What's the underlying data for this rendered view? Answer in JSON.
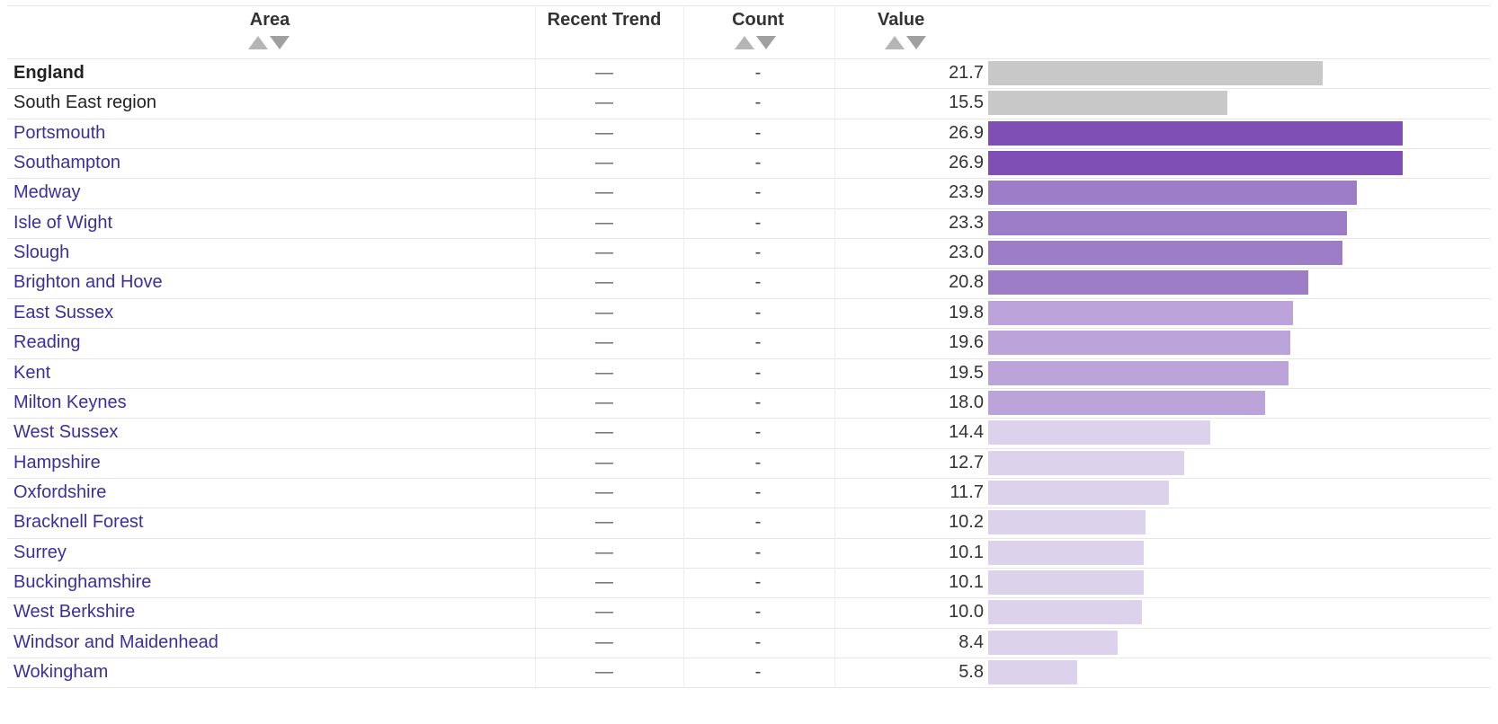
{
  "table": {
    "columns": [
      "Area",
      "Recent Trend",
      "Count",
      "Value"
    ],
    "rows": [
      {
        "area": "England",
        "trend": "—",
        "count": "-",
        "value": 21.7,
        "value_label": "21.7",
        "bar_color": "#c8c8c8",
        "name_style": "bold"
      },
      {
        "area": "South East region",
        "trend": "—",
        "count": "-",
        "value": 15.5,
        "value_label": "15.5",
        "bar_color": "#c8c8c8",
        "name_style": "plain"
      },
      {
        "area": "Portsmouth",
        "trend": "—",
        "count": "-",
        "value": 26.9,
        "value_label": "26.9",
        "bar_color": "#7f4fb5",
        "name_style": "link"
      },
      {
        "area": "Southampton",
        "trend": "—",
        "count": "-",
        "value": 26.9,
        "value_label": "26.9",
        "bar_color": "#7f4fb5",
        "name_style": "link"
      },
      {
        "area": "Medway",
        "trend": "—",
        "count": "-",
        "value": 23.9,
        "value_label": "23.9",
        "bar_color": "#9d7cc8",
        "name_style": "link"
      },
      {
        "area": "Isle of Wight",
        "trend": "—",
        "count": "-",
        "value": 23.3,
        "value_label": "23.3",
        "bar_color": "#9d7cc8",
        "name_style": "link"
      },
      {
        "area": "Slough",
        "trend": "—",
        "count": "-",
        "value": 23.0,
        "value_label": "23.0",
        "bar_color": "#9d7cc8",
        "name_style": "link"
      },
      {
        "area": "Brighton and Hove",
        "trend": "—",
        "count": "-",
        "value": 20.8,
        "value_label": "20.8",
        "bar_color": "#9d7cc8",
        "name_style": "link"
      },
      {
        "area": "East Sussex",
        "trend": "—",
        "count": "-",
        "value": 19.8,
        "value_label": "19.8",
        "bar_color": "#bca4da",
        "name_style": "link"
      },
      {
        "area": "Reading",
        "trend": "—",
        "count": "-",
        "value": 19.6,
        "value_label": "19.6",
        "bar_color": "#bca4da",
        "name_style": "link"
      },
      {
        "area": "Kent",
        "trend": "—",
        "count": "-",
        "value": 19.5,
        "value_label": "19.5",
        "bar_color": "#bca4da",
        "name_style": "link"
      },
      {
        "area": "Milton Keynes",
        "trend": "—",
        "count": "-",
        "value": 18.0,
        "value_label": "18.0",
        "bar_color": "#bca4da",
        "name_style": "link"
      },
      {
        "area": "West Sussex",
        "trend": "—",
        "count": "-",
        "value": 14.4,
        "value_label": "14.4",
        "bar_color": "#ddd2ec",
        "name_style": "link"
      },
      {
        "area": "Hampshire",
        "trend": "—",
        "count": "-",
        "value": 12.7,
        "value_label": "12.7",
        "bar_color": "#ddd2ec",
        "name_style": "link"
      },
      {
        "area": "Oxfordshire",
        "trend": "—",
        "count": "-",
        "value": 11.7,
        "value_label": "11.7",
        "bar_color": "#ddd2ec",
        "name_style": "link"
      },
      {
        "area": "Bracknell Forest",
        "trend": "—",
        "count": "-",
        "value": 10.2,
        "value_label": "10.2",
        "bar_color": "#ddd2ec",
        "name_style": "link"
      },
      {
        "area": "Surrey",
        "trend": "—",
        "count": "-",
        "value": 10.1,
        "value_label": "10.1",
        "bar_color": "#ddd2ec",
        "name_style": "link"
      },
      {
        "area": "Buckinghamshire",
        "trend": "—",
        "count": "-",
        "value": 10.1,
        "value_label": "10.1",
        "bar_color": "#ddd2ec",
        "name_style": "link"
      },
      {
        "area": "West Berkshire",
        "trend": "—",
        "count": "-",
        "value": 10.0,
        "value_label": "10.0",
        "bar_color": "#ddd2ec",
        "name_style": "link"
      },
      {
        "area": "Windsor and Maidenhead",
        "trend": "—",
        "count": "-",
        "value": 8.4,
        "value_label": "8.4",
        "bar_color": "#ddd2ec",
        "name_style": "link"
      },
      {
        "area": "Wokingham",
        "trend": "—",
        "count": "-",
        "value": 5.8,
        "value_label": "5.8",
        "bar_color": "#ddd2ec",
        "name_style": "link"
      }
    ]
  }
}
